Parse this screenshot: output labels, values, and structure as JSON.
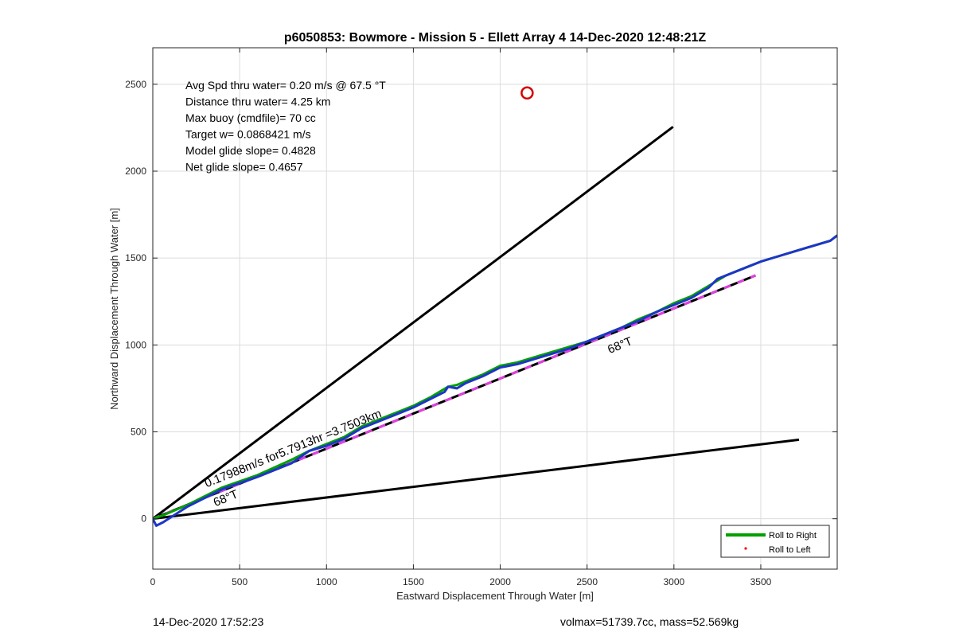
{
  "chart_data": {
    "type": "line",
    "title": "p6050853: Bowmore - Mission 5 - Ellett Array 4 14-Dec-2020 12:48:21Z",
    "xlabel": "Eastward Displacement Through Water [m]",
    "ylabel": "Northward Displacement Through Water [m]",
    "xlim": [
      0,
      3940
    ],
    "ylim": [
      -290,
      2710
    ],
    "xticks": [
      0,
      500,
      1000,
      1500,
      2000,
      2500,
      3000,
      3500
    ],
    "yticks": [
      0,
      500,
      1000,
      1500,
      2000,
      2500
    ],
    "grid": true,
    "legend_position": "bottom-right",
    "text_block": [
      "Avg Spd thru water=  0.20 m/s @  67.5 °T",
      "Distance thru water=  4.25 km",
      "Max buoy (cmdfile)= 70 cc",
      "Target w= 0.0868421 m/s",
      "Model glide slope= 0.4828",
      "Net glide slope= 0.4657"
    ],
    "reference_lines": [
      {
        "x": [
          0,
          2995
        ],
        "y": [
          0,
          2255
        ],
        "color": "#000000"
      },
      {
        "x": [
          0,
          3720
        ],
        "y": [
          0,
          455
        ],
        "color": "#000000"
      },
      {
        "x": [
          0,
          3470
        ],
        "y": [
          0,
          1400
        ],
        "color": "#000000",
        "style": "dashed-black-magenta"
      }
    ],
    "annotations": [
      {
        "text": "0.17988m/s for5.7913hr =3.7503km",
        "x": 310,
        "y": 180,
        "angle": -22
      },
      {
        "text": "68°T",
        "x": 360,
        "y": 70,
        "angle": -22
      },
      {
        "text": "68°T",
        "x": 2630,
        "y": 950,
        "angle": -22
      }
    ],
    "target_marker": {
      "x": 2155,
      "y": 2450,
      "color": "#d40000"
    },
    "series": [
      {
        "name": "Roll to Right",
        "color": "#00a000",
        "x": [
          0,
          60,
          200,
          400,
          600,
          800,
          900,
          1000,
          1100,
          1200,
          1300,
          1400,
          1500,
          1600,
          1700,
          1750,
          1800,
          1900,
          2000,
          2100,
          2200,
          2300,
          2400,
          2500,
          2600,
          2700,
          2800,
          2900,
          3000,
          3100,
          3200,
          3300,
          3400,
          3500,
          3600,
          3700,
          3800,
          3900,
          3940
        ],
        "y": [
          0,
          20,
          80,
          180,
          250,
          340,
          390,
          430,
          470,
          530,
          570,
          610,
          650,
          700,
          760,
          770,
          790,
          830,
          880,
          900,
          930,
          960,
          990,
          1020,
          1060,
          1100,
          1150,
          1190,
          1240,
          1280,
          1340,
          1400,
          1440,
          1480,
          1510,
          1540,
          1570,
          1600,
          1630
        ]
      },
      {
        "name": "Roll to Left",
        "color": "#ff0000"
      },
      {
        "name": "",
        "color": "#1f35c8",
        "x": [
          0,
          20,
          60,
          200,
          400,
          600,
          800,
          900,
          1000,
          1100,
          1200,
          1300,
          1400,
          1500,
          1600,
          1680,
          1700,
          1750,
          1800,
          1900,
          2000,
          2100,
          2200,
          2300,
          2400,
          2500,
          2600,
          2700,
          2800,
          2900,
          3000,
          3100,
          3200,
          3250,
          3300,
          3400,
          3500,
          3600,
          3700,
          3800,
          3900,
          3940
        ],
        "y": [
          0,
          -40,
          -20,
          70,
          170,
          240,
          320,
          390,
          420,
          460,
          520,
          560,
          600,
          640,
          690,
          730,
          760,
          750,
          780,
          820,
          870,
          890,
          920,
          950,
          980,
          1020,
          1060,
          1100,
          1140,
          1190,
          1230,
          1270,
          1330,
          1380,
          1400,
          1440,
          1480,
          1510,
          1540,
          1570,
          1600,
          1630
        ]
      }
    ]
  },
  "footer": {
    "left": "14-Dec-2020 17:52:23",
    "right": "volmax=51739.7cc, mass=52.569kg"
  }
}
